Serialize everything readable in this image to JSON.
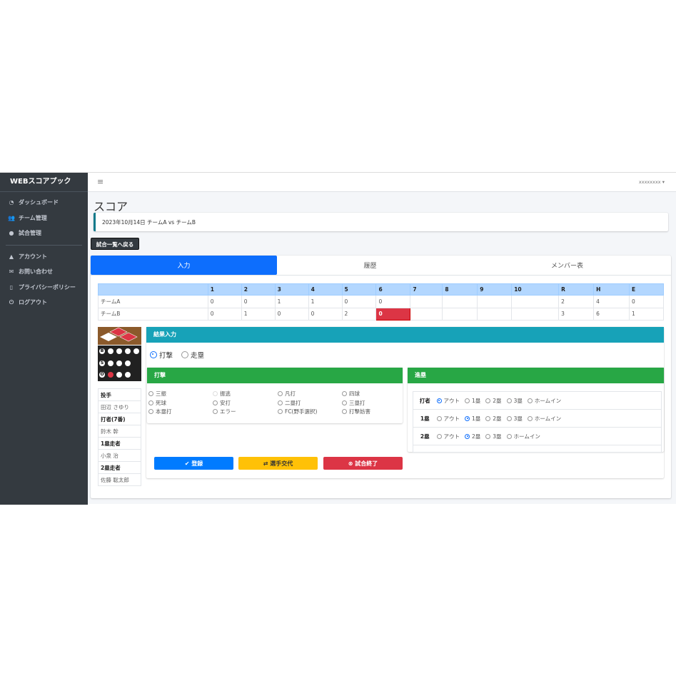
{
  "app": {
    "brand": "WEBスコアプック",
    "user": "xxxxxxxx"
  },
  "sidebar": {
    "items": [
      {
        "label": "ダッシュボード",
        "icon": "tachometer-icon"
      },
      {
        "label": "チーム管理",
        "icon": "users-icon"
      },
      {
        "label": "試合管理",
        "icon": "baseball-icon"
      },
      {
        "label": "アカウント",
        "icon": "user-icon"
      },
      {
        "label": "お問い合わせ",
        "icon": "envelope-icon"
      },
      {
        "label": "プライバシーポリシー",
        "icon": "file-icon"
      },
      {
        "label": "ログアウト",
        "icon": "power-icon"
      }
    ]
  },
  "page": {
    "title": "スコア",
    "game_info": "2023年10月14日 チームA vs チームB",
    "back_button": "試合一覧へ戻る"
  },
  "tabs": [
    {
      "label": "入力",
      "active": true
    },
    {
      "label": "履歴"
    },
    {
      "label": "メンバー表"
    }
  ],
  "scoreboard": {
    "headers": [
      "",
      "1",
      "2",
      "3",
      "4",
      "5",
      "6",
      "7",
      "8",
      "9",
      "10",
      "R",
      "H",
      "E"
    ],
    "rows": [
      [
        "チームA",
        "0",
        "0",
        "1",
        "1",
        "0",
        "0",
        "",
        "",
        "",
        "",
        "2",
        "4",
        "0"
      ],
      [
        "チームB",
        "0",
        "1",
        "0",
        "0",
        "2",
        "0",
        "",
        "",
        "",
        "",
        "3",
        "6",
        "1"
      ]
    ],
    "current_cell": {
      "row": 1,
      "inning": 6
    }
  },
  "count": {
    "labels": [
      "B",
      "S",
      "O"
    ],
    "balls": 0,
    "strikes": 0,
    "outs": 1,
    "runners": [
      "1塁",
      "2塁"
    ]
  },
  "roster": [
    {
      "label": "投手",
      "bold": true
    },
    {
      "label": "田辺 さゆり"
    },
    {
      "label": "打者(7番)",
      "bold": true
    },
    {
      "label": "鈴木 幹"
    },
    {
      "label": "1塁走者",
      "bold": true
    },
    {
      "label": "小泉 治"
    },
    {
      "label": "2塁走者",
      "bold": true
    },
    {
      "label": "佐藤 聡太郎"
    }
  ],
  "result": {
    "title": "結果入力",
    "modes": [
      {
        "label": "打撃",
        "checked": true
      },
      {
        "label": "走塁",
        "checked": false
      }
    ]
  },
  "batting": {
    "title": "打撃",
    "options": [
      "三振",
      "振逃",
      "凡打",
      "四球",
      "死球",
      "安打",
      "二塁打",
      "三塁打",
      "本塁打",
      "エラー",
      "FC(野手選択)",
      "打撃妨害"
    ]
  },
  "advance": {
    "title": "進塁",
    "rows": [
      {
        "label": "打者",
        "options": [
          "アウト",
          "1塁",
          "2塁",
          "3塁",
          "ホームイン"
        ],
        "selected": "アウト"
      },
      {
        "label": "1塁",
        "options": [
          "アウト",
          "1塁",
          "2塁",
          "3塁",
          "ホームイン"
        ],
        "selected": "1塁"
      },
      {
        "label": "2塁",
        "options": [
          "アウト",
          "2塁",
          "3塁",
          "ホームイン"
        ],
        "selected": "2塁"
      }
    ]
  },
  "buttons": {
    "register": "登録",
    "substitute": "選手交代",
    "end_game": "試合終了"
  },
  "colors": {
    "sidebar": "#343a40",
    "primary": "#007bff",
    "info": "#17a2b8",
    "success": "#28a745",
    "warning": "#ffc107",
    "danger": "#dc3545"
  }
}
